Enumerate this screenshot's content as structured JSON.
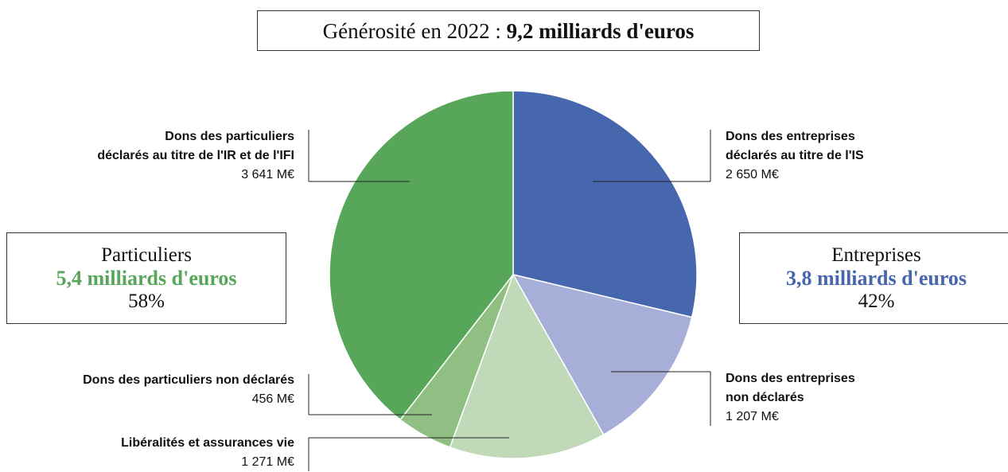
{
  "chart_data": {
    "type": "pie",
    "title": "Générosité en 2022 :",
    "title_highlight": "9,2 milliards d'euros",
    "categories": [
      "Dons des entreprises\ndéclarés au titre de l'IS",
      "Dons des entreprises\nnon déclarés",
      "Libéralités et assurances vie",
      "Dons des particuliers non déclarés",
      "Dons des particuliers\ndéclarés au titre de l'IR et de l'IFI"
    ],
    "values": [
      2650,
      1207,
      1271,
      456,
      3641
    ],
    "value_labels": [
      "2 650 M€",
      "1 207 M€",
      "1 271 M€",
      "456 M€",
      "3 641 M€"
    ],
    "colors": [
      "#4666ae",
      "#a7afd9",
      "#c0d9b8",
      "#8fbf82",
      "#57a65a"
    ],
    "annotations": [
      {
        "name": "Particuliers",
        "amount": "5,4 milliards d'euros",
        "share": "58%",
        "color": "#57a65a"
      },
      {
        "name": "Entreprises",
        "amount": "3,8 milliards d'euros",
        "share": "42%",
        "color": "#4666ae"
      }
    ]
  }
}
